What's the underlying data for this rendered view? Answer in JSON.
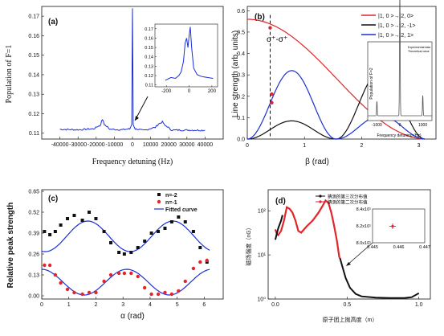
{
  "chart_data": [
    {
      "panel": "(a)",
      "type": "line",
      "xlabel": "Frequency detuning (Hz)",
      "ylabel": "Population of F=1",
      "xlim": [
        -50000,
        50000
      ],
      "ylim": [
        0.107,
        0.175
      ],
      "xticks": [
        "-40000",
        "-30000",
        "-20000",
        "-10000",
        "0",
        "10000",
        "20000",
        "30000",
        "40000"
      ],
      "yticks": [
        "0.11",
        "0.12",
        "0.13",
        "0.14",
        "0.15",
        "0.16",
        "0.17"
      ],
      "color": "#1a2fd6",
      "series": [
        {
          "x": [
            -40000,
            -30000,
            -22000,
            -18000,
            -16500,
            -15000,
            -12000,
            -6000,
            -1500,
            -400,
            0,
            400,
            1500,
            6000,
            12000,
            15000,
            16500,
            18000,
            22000,
            30000,
            40000
          ],
          "y": [
            0.112,
            0.1118,
            0.1122,
            0.1138,
            0.117,
            0.1138,
            0.112,
            0.1118,
            0.1122,
            0.1145,
            0.174,
            0.1145,
            0.1122,
            0.1115,
            0.1128,
            0.115,
            0.1158,
            0.1138,
            0.1116,
            0.1116,
            0.1115
          ]
        }
      ],
      "inset": {
        "xticks": [
          "-200",
          "0",
          "200"
        ],
        "yticks": [
          "0.11",
          "0.12",
          "0.13",
          "0.14",
          "0.15",
          "0.16",
          "0.17"
        ],
        "xlim": [
          -300,
          250
        ],
        "ylim": [
          0.108,
          0.175
        ],
        "x": [
          -210,
          -160,
          -120,
          -90,
          -70,
          -50,
          -35,
          -22,
          -10,
          0,
          10,
          22,
          40,
          70,
          110,
          160,
          210
        ],
        "y": [
          0.115,
          0.118,
          0.117,
          0.12,
          0.124,
          0.135,
          0.155,
          0.16,
          0.15,
          0.162,
          0.172,
          0.15,
          0.128,
          0.121,
          0.119,
          0.118,
          0.117
        ]
      }
    },
    {
      "panel": "(b)",
      "type": "line",
      "xlabel": "β (rad)",
      "ylabel": "Line strength (arb. units)",
      "xlim": [
        0,
        3.3
      ],
      "ylim": [
        0,
        0.62
      ],
      "xticks": [
        "0",
        "1",
        "2",
        "3"
      ],
      "yticks": [
        "0.0",
        "0.1",
        "0.2",
        "0.3",
        "0.4",
        "0.5",
        "0.6"
      ],
      "annotation": "σ⁺-σ⁺",
      "dashed_line_x": 0.4,
      "series": [
        {
          "name": "|1, 0 >→|2, 0>",
          "color": "#e0262b",
          "formula": "0.57*cos^2(b/2)"
        },
        {
          "name": "|1, 0 >→|2, -1>",
          "color": "#111111",
          "formula": "0.32*sin^2(2b)/ with 0.3 amplitude lobes"
        },
        {
          "name": "|1, 0 >→|2, 1>",
          "color": "#1a2fd6",
          "formula": "0.32 / 0.11 lobes"
        }
      ],
      "red_markers_x": [
        0.4,
        0.4,
        0.4
      ],
      "inset": {
        "xlabel": "Frequency detuning (Hz)",
        "ylabel": "Population of F=2",
        "legend": [
          "Experimental data",
          "Theoretical value"
        ],
        "xticks": [
          "-1000",
          "0",
          "1000"
        ]
      }
    },
    {
      "panel": "(c)",
      "type": "scatter",
      "xlabel": "α (rad)",
      "ylabel": "Relative peak strength",
      "xlim": [
        0,
        6.7
      ],
      "ylim": [
        -0.02,
        0.66
      ],
      "xticks": [
        "0",
        "1",
        "2",
        "3",
        "4",
        "5",
        "6"
      ],
      "yticks": [
        "0.00",
        "0.13",
        "0.26",
        "0.39",
        "0.52",
        "0.65"
      ],
      "series": [
        {
          "name": "n=-2",
          "color": "#111111",
          "x": [
            0.1,
            0.3,
            0.5,
            0.7,
            0.95,
            1.2,
            1.5,
            1.75,
            2.0,
            2.3,
            2.55,
            2.85,
            3.05,
            3.3,
            3.55,
            3.8,
            4.05,
            4.3,
            4.55,
            4.8,
            5.05,
            5.3,
            5.6,
            5.85,
            6.1
          ],
          "y": [
            0.4,
            0.38,
            0.4,
            0.44,
            0.48,
            0.5,
            0.47,
            0.52,
            0.48,
            0.4,
            0.33,
            0.27,
            0.26,
            0.27,
            0.3,
            0.34,
            0.39,
            0.4,
            0.42,
            0.46,
            0.49,
            0.46,
            0.4,
            0.3,
            0.21
          ]
        },
        {
          "name": "n=-1",
          "color": "#e0262b",
          "x": [
            0.1,
            0.3,
            0.5,
            0.7,
            0.95,
            1.2,
            1.5,
            1.75,
            2.0,
            2.3,
            2.55,
            2.85,
            3.05,
            3.3,
            3.55,
            3.8,
            4.05,
            4.3,
            4.55,
            4.8,
            5.05,
            5.3,
            5.6,
            5.85,
            6.1
          ],
          "y": [
            0.19,
            0.19,
            0.13,
            0.08,
            0.04,
            0.02,
            0.01,
            0.02,
            0.02,
            0.09,
            0.13,
            0.14,
            0.14,
            0.14,
            0.12,
            0.05,
            0.01,
            0.01,
            0.02,
            0.01,
            0.03,
            0.09,
            0.17,
            0.21,
            0.22
          ]
        },
        {
          "name": "Fitted curve",
          "color": "#1a2fd6"
        }
      ]
    },
    {
      "panel": "(d)",
      "type": "line",
      "xlabel": "原子团上抛高度（m）",
      "ylabel": "磁场强度（nG）",
      "xlim": [
        -0.05,
        1.08
      ],
      "ylim_log": [
        1,
        300
      ],
      "xticks": [
        "0.0",
        "0.5",
        "1.0"
      ],
      "yticks": [
        "10⁰",
        "10¹",
        "10²"
      ],
      "series": [
        {
          "name": "猜测的第三次分布值",
          "color": "#111111"
        },
        {
          "name": "猜测的第二次分布值",
          "color": "#e0262b"
        }
      ],
      "inset": {
        "xticks": [
          "0.445",
          "0.446",
          "0.447"
        ],
        "yticks": [
          "8.0x10¹",
          "8.2x10¹",
          "8.4x10¹"
        ]
      }
    }
  ]
}
